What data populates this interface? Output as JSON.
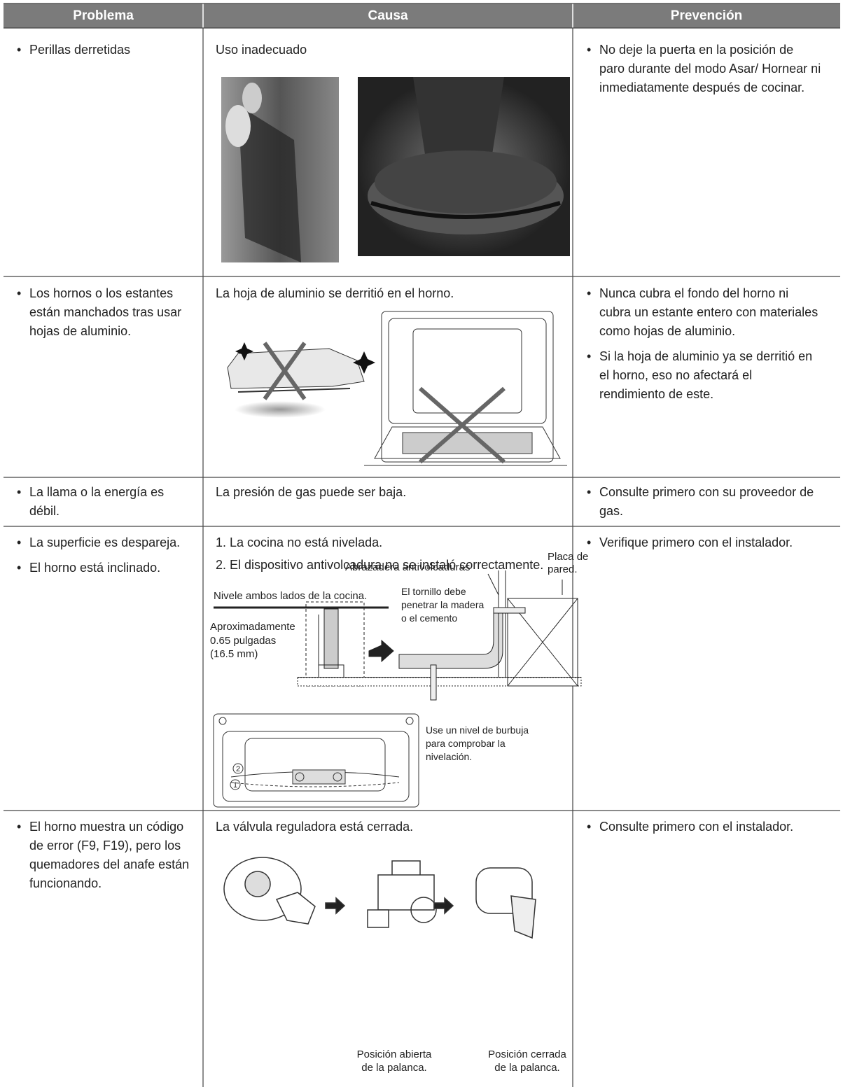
{
  "header": {
    "columns": [
      "Problema",
      "Causa",
      "Prevención"
    ]
  },
  "rows": [
    {
      "problem": [
        "Perillas derretidas"
      ],
      "cause": [
        "Uso inadecuado"
      ],
      "prevention": [
        "No deje la puerta en la posición de paro durante del modo Asar/ Hornear ni inmediatamente después de cocinar."
      ]
    },
    {
      "problem": [
        "Los hornos o los estantes están manchados tras usar hojas de aluminio."
      ],
      "cause": [
        "La hoja de aluminio se derritió en el horno."
      ],
      "prevention": [
        "Nunca cubra el fondo del horno ni cubra un estante entero con materiales como hojas de aluminio.",
        "Si la hoja de aluminio ya se derritió en el horno, eso no afectará el rendimiento de este."
      ]
    },
    {
      "problem": [
        "La llama o la energía es débil."
      ],
      "cause": [
        "La presión de gas puede ser baja."
      ],
      "prevention": [
        "Consulte primero con su proveedor de gas."
      ]
    },
    {
      "problem": [
        "La superficie es despareja.",
        "El horno está inclinado."
      ],
      "cause": [
        "1. La cocina no está nivelada.",
        "2. El dispositivo antivolcadura no se instaló correctamente."
      ],
      "prevention": [
        "Verifique primero con el instalador."
      ],
      "figure_labels": {
        "bracket": "Abrazadera antivolcaduras",
        "wall_plate": [
          "Placa de",
          "pared."
        ],
        "level": "Nivele ambos lados de la cocina.",
        "screw": [
          "El tornillo debe",
          "penetrar la madera",
          "o el cemento"
        ],
        "approx": [
          "Aproximadamente",
          "0.65 pulgadas",
          "(16.5 mm)"
        ],
        "bubble": [
          "Use un nivel de burbuja",
          "para comprobar la",
          "nivelación."
        ],
        "rack_numbers": [
          "1",
          "2"
        ]
      }
    },
    {
      "problem": [
        "El horno muestra un código de error (F9, F19), pero los quemadores del anafe están funcionando."
      ],
      "cause": [
        "La válvula reguladora está cerrada."
      ],
      "prevention": [
        "Consulte primero con el instalador."
      ],
      "figure_labels": {
        "open": [
          "Posición abierta",
          "de la palanca."
        ],
        "closed": [
          "Posición cerrada",
          "de la palanca."
        ]
      }
    }
  ]
}
